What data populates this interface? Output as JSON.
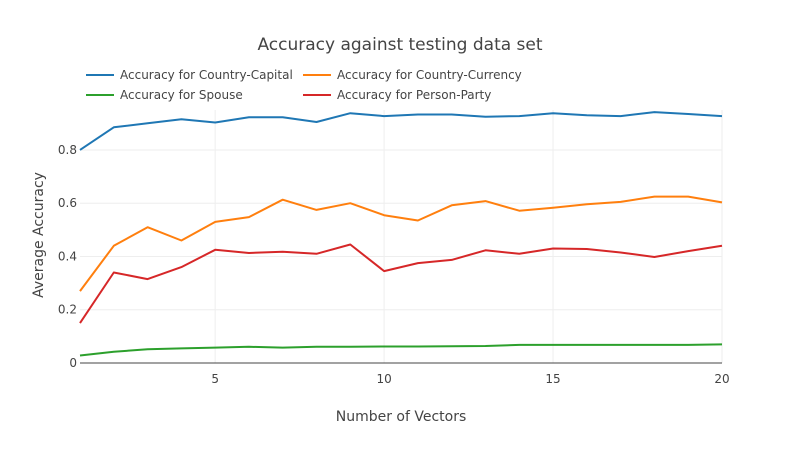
{
  "chart_data": {
    "type": "line",
    "title": "Accuracy against testing data set",
    "xlabel": "Number of Vectors",
    "ylabel": "Average Accuracy",
    "xlim": [
      1,
      20
    ],
    "ylim": [
      0,
      0.95
    ],
    "x": [
      1,
      2,
      3,
      4,
      5,
      6,
      7,
      8,
      9,
      10,
      11,
      12,
      13,
      14,
      15,
      16,
      17,
      18,
      19,
      20
    ],
    "x_ticks": [
      5,
      10,
      15,
      20
    ],
    "x_tick_labels": [
      "5",
      "10",
      "15",
      "20"
    ],
    "y_ticks": [
      0,
      0.2,
      0.4,
      0.6,
      0.8
    ],
    "y_tick_labels": [
      "0",
      "0.2",
      "0.4",
      "0.6",
      "0.8"
    ],
    "grid": true,
    "legend_position": "top-left",
    "series": [
      {
        "name": "Accuracy for Country-Capital",
        "color": "#1f77b4",
        "values": [
          0.8,
          0.885,
          0.9,
          0.915,
          0.903,
          0.923,
          0.923,
          0.905,
          0.938,
          0.927,
          0.933,
          0.933,
          0.925,
          0.927,
          0.938,
          0.93,
          0.927,
          0.942,
          0.935,
          0.927
        ]
      },
      {
        "name": "Accuracy for Country-Currency",
        "color": "#ff7f0e",
        "values": [
          0.27,
          0.44,
          0.51,
          0.46,
          0.53,
          0.548,
          0.613,
          0.575,
          0.6,
          0.555,
          0.535,
          0.592,
          0.608,
          0.572,
          0.583,
          0.596,
          0.605,
          0.625,
          0.625,
          0.603
        ]
      },
      {
        "name": "Accuracy for Spouse",
        "color": "#2ca02c",
        "values": [
          0.028,
          0.042,
          0.052,
          0.055,
          0.058,
          0.061,
          0.058,
          0.061,
          0.061,
          0.062,
          0.062,
          0.063,
          0.064,
          0.068,
          0.068,
          0.068,
          0.068,
          0.068,
          0.068,
          0.07
        ]
      },
      {
        "name": "Accuracy for Person-Party",
        "color": "#d62728",
        "values": [
          0.15,
          0.34,
          0.315,
          0.36,
          0.425,
          0.413,
          0.418,
          0.41,
          0.445,
          0.345,
          0.375,
          0.387,
          0.423,
          0.41,
          0.43,
          0.428,
          0.415,
          0.398,
          0.42,
          0.44
        ]
      }
    ]
  }
}
